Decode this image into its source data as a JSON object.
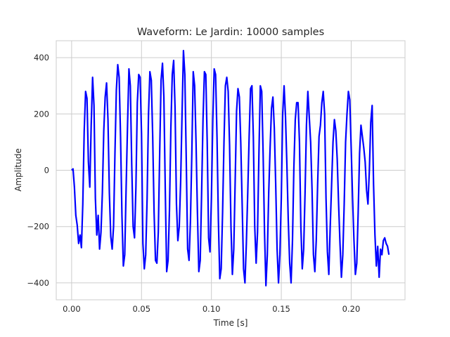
{
  "chart_data": {
    "type": "line",
    "title": "Waveform: Le Jardin: 10000 samples",
    "xlabel": "Time [s]",
    "ylabel": "Amplitude",
    "xlim": [
      -0.011,
      0.2385
    ],
    "ylim": [
      -460,
      460
    ],
    "xticks": [
      0.0,
      0.05,
      0.1,
      0.15,
      0.2
    ],
    "xtick_labels": [
      "0.00",
      "0.05",
      "0.10",
      "0.15",
      "0.20"
    ],
    "yticks": [
      -400,
      -200,
      0,
      200,
      400
    ],
    "ytick_labels": [
      "−400",
      "−200",
      "0",
      "200",
      "400"
    ],
    "grid": true,
    "series": [
      {
        "color": "#0000ff",
        "x": [
          0.0,
          0.001,
          0.002,
          0.003,
          0.004,
          0.005,
          0.006,
          0.007,
          0.008,
          0.009,
          0.01,
          0.011,
          0.012,
          0.013,
          0.014,
          0.015,
          0.016,
          0.017,
          0.018,
          0.019,
          0.02,
          0.021,
          0.022,
          0.023,
          0.024,
          0.025,
          0.026,
          0.027,
          0.028,
          0.029,
          0.03,
          0.031,
          0.032,
          0.033,
          0.034,
          0.035,
          0.036,
          0.037,
          0.038,
          0.039,
          0.04,
          0.041,
          0.042,
          0.043,
          0.044,
          0.045,
          0.046,
          0.047,
          0.048,
          0.049,
          0.05,
          0.051,
          0.052,
          0.053,
          0.054,
          0.055,
          0.056,
          0.057,
          0.058,
          0.059,
          0.06,
          0.061,
          0.062,
          0.063,
          0.064,
          0.065,
          0.066,
          0.067,
          0.068,
          0.069,
          0.07,
          0.071,
          0.072,
          0.073,
          0.074,
          0.075,
          0.076,
          0.077,
          0.078,
          0.079,
          0.08,
          0.081,
          0.082,
          0.083,
          0.084,
          0.085,
          0.086,
          0.087,
          0.088,
          0.089,
          0.09,
          0.091,
          0.092,
          0.093,
          0.094,
          0.095,
          0.096,
          0.097,
          0.098,
          0.099,
          0.1,
          0.101,
          0.102,
          0.103,
          0.104,
          0.105,
          0.106,
          0.107,
          0.108,
          0.109,
          0.11,
          0.111,
          0.112,
          0.113,
          0.114,
          0.115,
          0.116,
          0.117,
          0.118,
          0.119,
          0.12,
          0.121,
          0.122,
          0.123,
          0.124,
          0.125,
          0.126,
          0.127,
          0.128,
          0.129,
          0.13,
          0.131,
          0.132,
          0.133,
          0.134,
          0.135,
          0.136,
          0.137,
          0.138,
          0.139,
          0.14,
          0.141,
          0.142,
          0.143,
          0.144,
          0.145,
          0.146,
          0.147,
          0.148,
          0.149,
          0.15,
          0.151,
          0.152,
          0.153,
          0.154,
          0.155,
          0.156,
          0.157,
          0.158,
          0.159,
          0.16,
          0.161,
          0.162,
          0.163,
          0.164,
          0.165,
          0.166,
          0.167,
          0.168,
          0.169,
          0.17,
          0.171,
          0.172,
          0.173,
          0.174,
          0.175,
          0.176,
          0.177,
          0.178,
          0.179,
          0.18,
          0.181,
          0.182,
          0.183,
          0.184,
          0.185,
          0.186,
          0.187,
          0.188,
          0.189,
          0.19,
          0.191,
          0.192,
          0.193,
          0.194,
          0.195,
          0.196,
          0.197,
          0.198,
          0.199,
          0.2,
          0.201,
          0.202,
          0.203,
          0.204,
          0.205,
          0.206,
          0.207,
          0.208,
          0.209,
          0.21,
          0.211,
          0.212,
          0.213,
          0.214,
          0.215,
          0.216,
          0.217,
          0.218,
          0.219,
          0.22,
          0.221,
          0.222,
          0.223,
          0.224,
          0.225,
          0.226,
          0.227
        ],
        "y": [
          0,
          5,
          -60,
          -160,
          -195,
          -260,
          -230,
          -275,
          -120,
          140,
          280,
          255,
          30,
          -60,
          160,
          330,
          230,
          -100,
          -230,
          -160,
          -280,
          -220,
          -80,
          140,
          260,
          310,
          180,
          -80,
          -235,
          -280,
          -200,
          60,
          285,
          375,
          330,
          120,
          -160,
          -340,
          -300,
          -60,
          160,
          360,
          300,
          20,
          -200,
          -240,
          -60,
          240,
          340,
          330,
          130,
          -260,
          -350,
          -300,
          -100,
          200,
          350,
          320,
          120,
          -150,
          -320,
          -330,
          -220,
          60,
          320,
          380,
          260,
          -70,
          -360,
          -320,
          -140,
          150,
          340,
          390,
          220,
          -120,
          -250,
          -200,
          -40,
          200,
          425,
          340,
          40,
          -280,
          -320,
          -180,
          60,
          350,
          300,
          100,
          -150,
          -360,
          -320,
          -80,
          180,
          350,
          340,
          100,
          -240,
          -290,
          -100,
          180,
          360,
          340,
          120,
          -180,
          -385,
          -350,
          -150,
          100,
          300,
          330,
          280,
          90,
          -200,
          -370,
          -280,
          -40,
          210,
          290,
          260,
          100,
          -120,
          -350,
          -400,
          -260,
          -80,
          120,
          290,
          300,
          120,
          -200,
          -330,
          -220,
          60,
          300,
          280,
          60,
          -220,
          -410,
          -300,
          -80,
          80,
          220,
          260,
          150,
          -50,
          -280,
          -400,
          -300,
          -100,
          200,
          300,
          190,
          20,
          -180,
          -330,
          -400,
          -250,
          10,
          180,
          240,
          240,
          100,
          -200,
          -350,
          -280,
          -80,
          160,
          280,
          190,
          100,
          -70,
          -300,
          -360,
          -250,
          -50,
          120,
          160,
          240,
          280,
          200,
          -100,
          -290,
          -370,
          -200,
          -50,
          100,
          180,
          140,
          40,
          -120,
          -260,
          -380,
          -300,
          -120,
          100,
          200,
          280,
          250,
          80,
          -100,
          -250,
          -370,
          -330,
          -150,
          60,
          160,
          120,
          80,
          30,
          -70,
          -120,
          0,
          170,
          230,
          -50,
          -230,
          -340,
          -270,
          -380,
          -280,
          -300,
          -250,
          -240,
          -260,
          -270,
          -300
        ],
        "width": 2.2
      }
    ]
  }
}
